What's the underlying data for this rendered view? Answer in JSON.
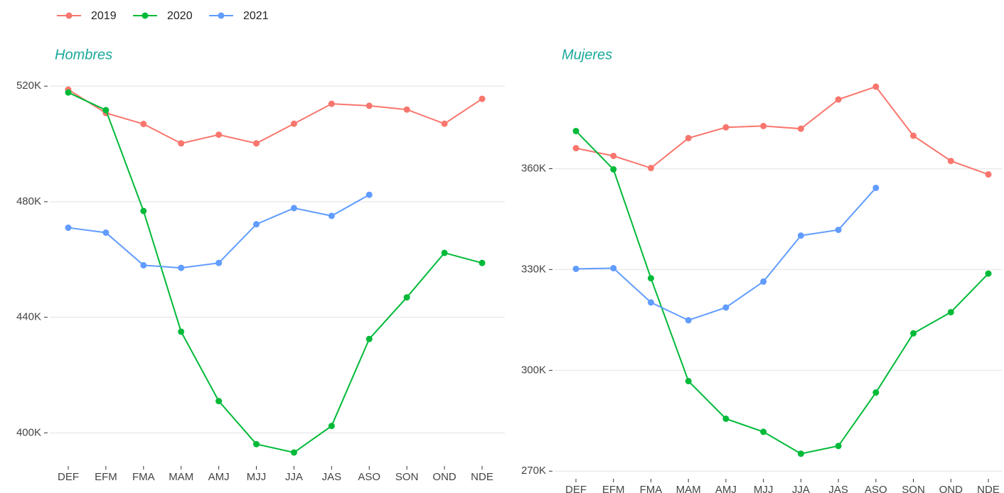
{
  "chart_data": [
    {
      "type": "line",
      "title": "Hombres",
      "categories": [
        "DEF",
        "EFM",
        "FMA",
        "MAM",
        "AMJ",
        "MJJ",
        "JJA",
        "JAS",
        "ASO",
        "SON",
        "OND",
        "NDE"
      ],
      "series": [
        {
          "name": "2019",
          "color": "#F8766D",
          "values": [
            518800,
            510700,
            506900,
            500200,
            503200,
            500200,
            507000,
            513900,
            513200,
            511900,
            507000,
            515600
          ]
        },
        {
          "name": "2020",
          "color": "#00BA38",
          "values": [
            517800,
            511700,
            476800,
            435000,
            411000,
            396100,
            393200,
            402400,
            432500,
            446900,
            462300,
            458800
          ]
        },
        {
          "name": "2021",
          "color": "#619CFF",
          "values": [
            471000,
            469300,
            458000,
            457100,
            458800,
            472200,
            477800,
            475100,
            482400,
            null,
            null,
            null
          ]
        }
      ],
      "ylim": [
        390000,
        524000
      ],
      "yticks": [
        {
          "value": 400000,
          "label": "400K"
        },
        {
          "value": 440000,
          "label": "440K"
        },
        {
          "value": 480000,
          "label": "480K"
        },
        {
          "value": 520000,
          "label": "520K"
        }
      ],
      "grid": true
    },
    {
      "type": "line",
      "title": "Mujeres",
      "categories": [
        "DEF",
        "EFM",
        "FMA",
        "MAM",
        "AMJ",
        "MJJ",
        "JJA",
        "JAS",
        "ASO",
        "SON",
        "OND",
        "NDE"
      ],
      "series": [
        {
          "name": "2019",
          "color": "#F8766D",
          "values": [
            366100,
            363800,
            360200,
            369100,
            372300,
            372700,
            371900,
            380600,
            384400,
            369800,
            362300,
            358300
          ]
        },
        {
          "name": "2020",
          "color": "#00BA38",
          "values": [
            371200,
            359800,
            327400,
            296800,
            285600,
            281700,
            275200,
            277500,
            293400,
            311000,
            317300,
            328800
          ]
        },
        {
          "name": "2021",
          "color": "#619CFF",
          "values": [
            330200,
            330400,
            320200,
            314900,
            318700,
            326400,
            340100,
            341800,
            354300,
            null,
            null,
            null
          ]
        }
      ],
      "ylim": [
        269000,
        388000
      ],
      "yticks": [
        {
          "value": 270000,
          "label": "270K"
        },
        {
          "value": 300000,
          "label": "300K"
        },
        {
          "value": 330000,
          "label": "330K"
        },
        {
          "value": 360000,
          "label": "360K"
        }
      ],
      "grid": true
    }
  ]
}
